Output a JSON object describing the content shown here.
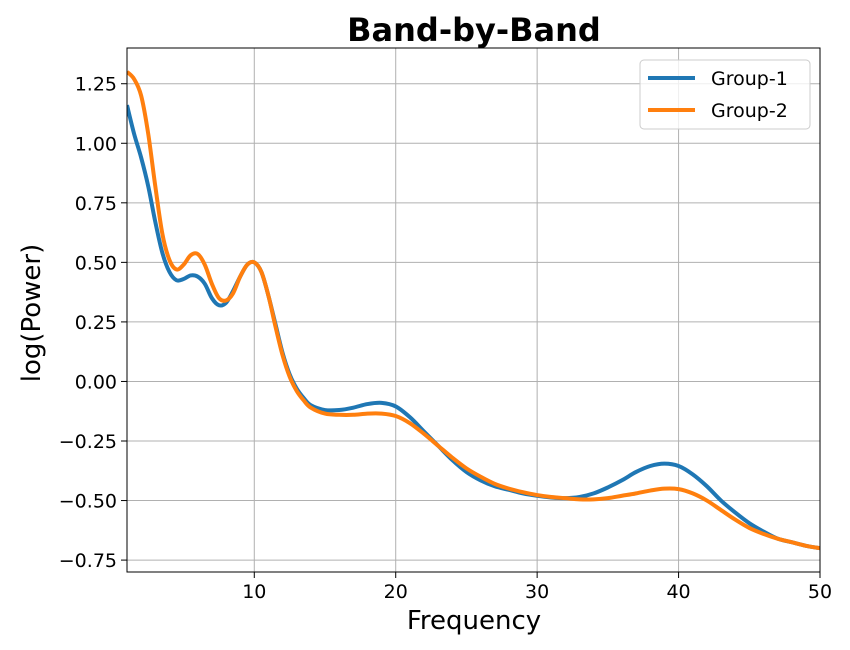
{
  "chart_data": {
    "type": "line",
    "title": "Band-by-Band",
    "xlabel": "Frequency",
    "ylabel": "log(Power)",
    "xlim": [
      1,
      50
    ],
    "ylim": [
      -0.8,
      1.4
    ],
    "xticks": [
      10,
      20,
      30,
      40,
      50
    ],
    "xtick_labels": [
      "10",
      "20",
      "30",
      "40",
      "50"
    ],
    "yticks": [
      -0.75,
      -0.5,
      -0.25,
      0.0,
      0.25,
      0.5,
      0.75,
      1.0,
      1.25
    ],
    "ytick_labels": [
      "−0.75",
      "−0.50",
      "−0.25",
      "0.00",
      "0.25",
      "0.50",
      "0.75",
      "1.00",
      "1.25"
    ],
    "grid": true,
    "legend_position": "top-right",
    "series": [
      {
        "name": "Group-1",
        "color": "#1f77b4",
        "x": [
          1,
          1.5,
          2,
          2.5,
          3,
          3.5,
          4,
          4.5,
          5,
          5.5,
          6,
          6.5,
          7,
          7.5,
          8,
          8.5,
          9,
          9.5,
          10,
          10.5,
          11,
          11.5,
          12,
          12.5,
          13,
          13.5,
          14,
          15,
          16,
          17,
          18,
          19,
          20,
          21,
          22,
          23,
          24,
          25,
          26,
          27,
          28,
          29,
          30,
          31,
          32,
          33,
          34,
          35,
          36,
          37,
          38,
          39,
          40,
          41,
          42,
          43,
          44,
          45,
          46,
          47,
          48,
          49,
          50
        ],
        "y": [
          1.16,
          1.04,
          0.94,
          0.82,
          0.67,
          0.54,
          0.46,
          0.425,
          0.43,
          0.445,
          0.44,
          0.41,
          0.35,
          0.32,
          0.33,
          0.38,
          0.44,
          0.49,
          0.5,
          0.46,
          0.36,
          0.24,
          0.12,
          0.03,
          -0.03,
          -0.07,
          -0.1,
          -0.12,
          -0.12,
          -0.11,
          -0.095,
          -0.09,
          -0.105,
          -0.15,
          -0.21,
          -0.27,
          -0.33,
          -0.38,
          -0.415,
          -0.44,
          -0.455,
          -0.47,
          -0.48,
          -0.487,
          -0.49,
          -0.485,
          -0.47,
          -0.445,
          -0.415,
          -0.38,
          -0.355,
          -0.345,
          -0.355,
          -0.39,
          -0.44,
          -0.5,
          -0.55,
          -0.595,
          -0.63,
          -0.66,
          -0.675,
          -0.69,
          -0.7
        ]
      },
      {
        "name": "Group-2",
        "color": "#ff7f0e",
        "x": [
          1,
          1.5,
          2,
          2.5,
          3,
          3.5,
          4,
          4.5,
          5,
          5.5,
          6,
          6.5,
          7,
          7.5,
          8,
          8.5,
          9,
          9.5,
          10,
          10.5,
          11,
          11.5,
          12,
          12.5,
          13,
          13.5,
          14,
          15,
          16,
          17,
          18,
          19,
          20,
          21,
          22,
          23,
          24,
          25,
          26,
          27,
          28,
          29,
          30,
          31,
          32,
          33,
          34,
          35,
          36,
          37,
          38,
          39,
          40,
          41,
          42,
          43,
          44,
          45,
          46,
          47,
          48,
          49,
          50
        ],
        "y": [
          1.3,
          1.27,
          1.2,
          1.04,
          0.82,
          0.62,
          0.51,
          0.47,
          0.49,
          0.53,
          0.535,
          0.49,
          0.41,
          0.35,
          0.34,
          0.37,
          0.44,
          0.49,
          0.5,
          0.46,
          0.36,
          0.23,
          0.11,
          0.02,
          -0.04,
          -0.08,
          -0.11,
          -0.135,
          -0.14,
          -0.14,
          -0.135,
          -0.135,
          -0.145,
          -0.175,
          -0.22,
          -0.27,
          -0.32,
          -0.365,
          -0.4,
          -0.43,
          -0.45,
          -0.465,
          -0.477,
          -0.485,
          -0.49,
          -0.495,
          -0.495,
          -0.49,
          -0.48,
          -0.47,
          -0.458,
          -0.45,
          -0.452,
          -0.47,
          -0.5,
          -0.54,
          -0.58,
          -0.615,
          -0.64,
          -0.66,
          -0.675,
          -0.69,
          -0.7
        ]
      }
    ]
  }
}
